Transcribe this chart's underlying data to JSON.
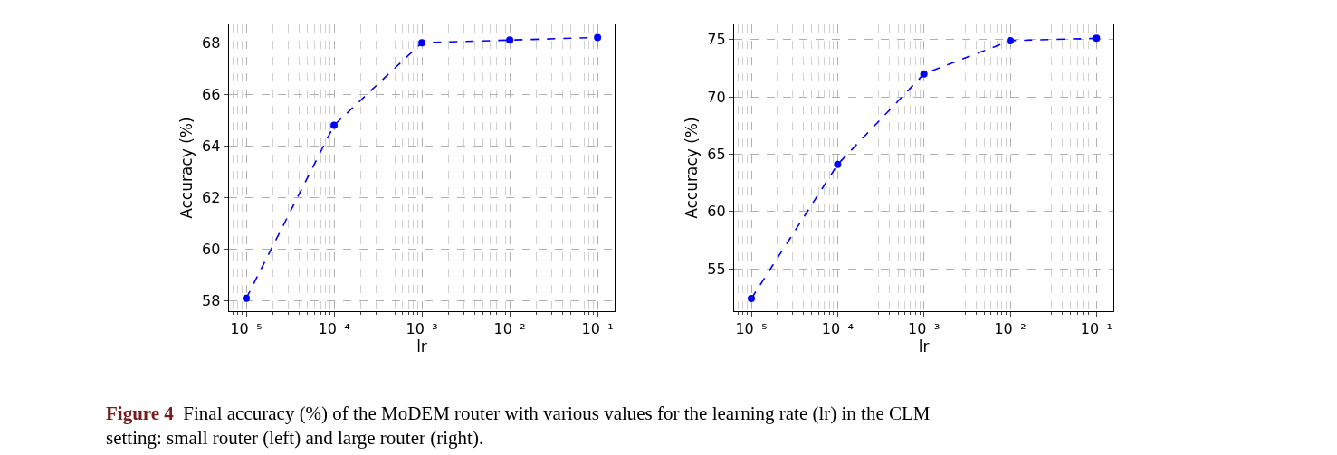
{
  "chart_data": [
    {
      "type": "line",
      "xlabel": "lr",
      "ylabel": "Accuracy (%)",
      "x": [
        1e-05,
        0.0001,
        0.001,
        0.01,
        0.1
      ],
      "series": [
        {
          "color": "#0000ff",
          "values": [
            58.1,
            64.8,
            68.0,
            68.1,
            68.2
          ]
        }
      ],
      "log": "x",
      "xlim": [
        6.3e-06,
        0.158
      ],
      "xticks": [
        {
          "value": 1e-05,
          "label": "10⁻⁵"
        },
        {
          "value": 0.0001,
          "label": "10⁻⁴"
        },
        {
          "value": 0.001,
          "label": "10⁻³"
        },
        {
          "value": 0.01,
          "label": "10⁻²"
        },
        {
          "value": 0.1,
          "label": "10⁻¹"
        }
      ],
      "ylim": [
        57.6,
        68.7
      ],
      "yticks": [
        58,
        60,
        62,
        64,
        66,
        68
      ],
      "grid": true,
      "marker": "circle",
      "line_style": "dashed",
      "annotations": [
        "Figure 4  Final accuracy (%) of the MoDEM router with various values for the learning rate (lr) in the CLM setting: small router (left) and large router (right)."
      ]
    },
    {
      "type": "line",
      "xlabel": "lr",
      "ylabel": "Accuracy (%)",
      "x": [
        1e-05,
        0.0001,
        0.001,
        0.01,
        0.1
      ],
      "series": [
        {
          "color": "#0000ff",
          "values": [
            52.4,
            64.1,
            72.0,
            74.9,
            75.1
          ]
        }
      ],
      "log": "x",
      "xlim": [
        6.3e-06,
        0.158
      ],
      "xticks": [
        {
          "value": 1e-05,
          "label": "10⁻⁵"
        },
        {
          "value": 0.0001,
          "label": "10⁻⁴"
        },
        {
          "value": 0.001,
          "label": "10⁻³"
        },
        {
          "value": 0.01,
          "label": "10⁻²"
        },
        {
          "value": 0.1,
          "label": "10⁻¹"
        }
      ],
      "ylim": [
        51.3,
        76.3
      ],
      "yticks": [
        55,
        60,
        65,
        70,
        75
      ],
      "grid": true,
      "marker": "circle",
      "line_style": "dashed"
    }
  ]
}
